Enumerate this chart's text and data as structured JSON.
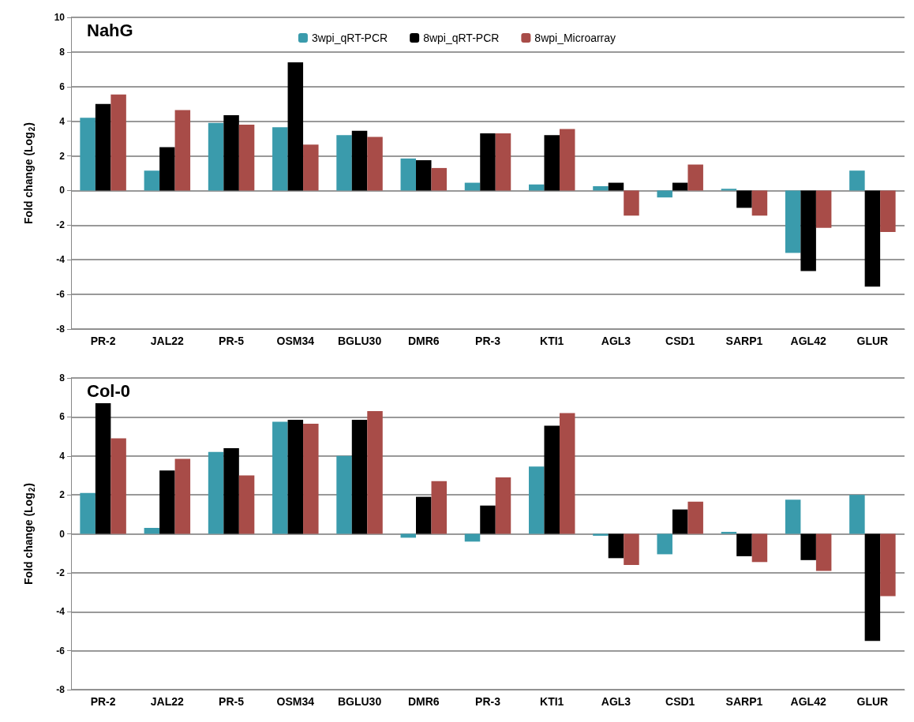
{
  "chart_data": [
    {
      "type": "bar",
      "title": "NahG",
      "ylabel": "Fold change (Log$_{2}$)",
      "categories": [
        "PR-2",
        "JAL22",
        "PR-5",
        "OSM34",
        "BGLU30",
        "DMR6",
        "PR-3",
        "KTI1",
        "AGL3",
        "CSD1",
        "SARP1",
        "AGL42",
        "GLUR"
      ],
      "series": [
        {
          "name": "3wpi_qRT-PCR",
          "color": "#3a9bac",
          "values": [
            4.2,
            1.15,
            3.9,
            3.65,
            3.2,
            1.85,
            0.45,
            0.35,
            0.25,
            -0.4,
            0.1,
            -3.6,
            1.15
          ]
        },
        {
          "name": "8wpi_qRT-PCR",
          "color": "#000000",
          "values": [
            5.0,
            2.5,
            4.35,
            7.4,
            3.45,
            1.75,
            3.3,
            3.2,
            0.45,
            0.45,
            -1.0,
            -4.65,
            -5.55
          ]
        },
        {
          "name": "8wpi_Microarray",
          "color": "#a84c48",
          "values": [
            5.55,
            4.65,
            3.8,
            2.65,
            3.1,
            1.3,
            3.3,
            3.55,
            -1.45,
            1.5,
            -1.45,
            -2.15,
            -2.4
          ]
        }
      ],
      "ylim": [
        -8,
        10
      ],
      "yticks": [
        -8,
        -6,
        -4,
        -2,
        0,
        2,
        4,
        6,
        8,
        10
      ],
      "grid": "y",
      "legend": "top"
    },
    {
      "type": "bar",
      "title": "Col-0",
      "ylabel": "Fold change (Log$_{2}$)",
      "categories": [
        "PR-2",
        "JAL22",
        "PR-5",
        "OSM34",
        "BGLU30",
        "DMR6",
        "PR-3",
        "KTI1",
        "AGL3",
        "CSD1",
        "SARP1",
        "AGL42",
        "GLUR"
      ],
      "series": [
        {
          "color": "#3a9bac",
          "values": [
            2.1,
            0.3,
            4.2,
            5.75,
            4.0,
            -0.2,
            -0.4,
            3.45,
            -0.1,
            -1.05,
            0.1,
            1.75,
            2.0
          ]
        },
        {
          "color": "#000000",
          "values": [
            6.7,
            3.25,
            4.4,
            5.85,
            5.85,
            1.9,
            1.45,
            5.55,
            -1.25,
            1.25,
            -1.15,
            -1.35,
            -5.5
          ]
        },
        {
          "color": "#a84c48",
          "values": [
            4.9,
            3.85,
            3.0,
            5.65,
            6.3,
            2.7,
            2.9,
            6.2,
            -1.6,
            1.65,
            -1.45,
            -1.9,
            -3.2
          ]
        }
      ],
      "ylim": [
        -8,
        8
      ],
      "yticks": [
        -8,
        -6,
        -4,
        -2,
        0,
        2,
        4,
        6,
        8
      ],
      "grid": "y"
    }
  ]
}
